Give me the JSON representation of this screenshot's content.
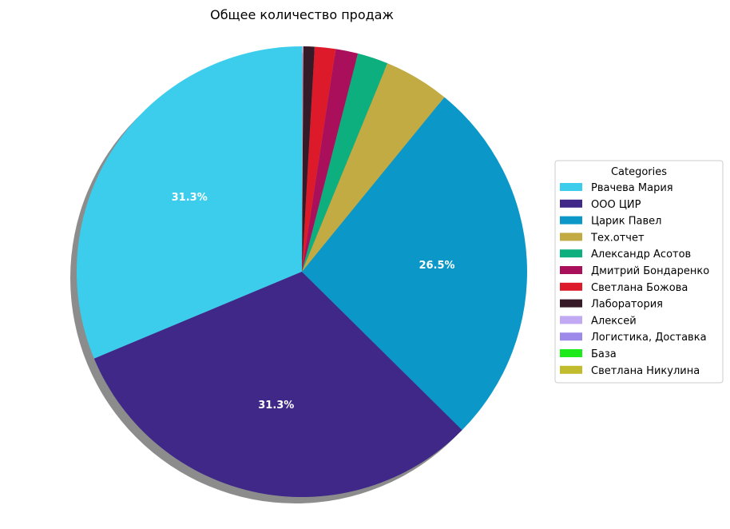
{
  "chart_data": {
    "type": "pie",
    "title": "Общее количество продаж",
    "legend_title": "Categories",
    "legend_position": "right",
    "shadow": true,
    "start_angle_deg": 90,
    "direction": "counterclockwise",
    "label_min_percent": 10,
    "slices": [
      {
        "label": "Рвачева Мария",
        "value": 31.3,
        "color": "#3dcdec"
      },
      {
        "label": "ООО ЦИР",
        "value": 31.3,
        "color": "#3f2888"
      },
      {
        "label": "Царик Павел",
        "value": 26.5,
        "color": "#0b98c8"
      },
      {
        "label": "Тех.отчет",
        "value": 4.7,
        "color": "#c3ab44"
      },
      {
        "label": "Александр Асотов",
        "value": 2.2,
        "color": "#0daf7e"
      },
      {
        "label": "Дмитрий Бондаренко",
        "value": 1.6,
        "color": "#a90f5b"
      },
      {
        "label": "Светлана Божова",
        "value": 1.5,
        "color": "#dd1a2a"
      },
      {
        "label": "Лаборатория",
        "value": 0.8,
        "color": "#361a28"
      },
      {
        "label": "Алексей",
        "value": 0.05,
        "color": "#c2a9f4"
      },
      {
        "label": "Логистика,  Доставка",
        "value": 0.03,
        "color": "#9d89ea"
      },
      {
        "label": "База",
        "value": 0.01,
        "color": "#1ee91a"
      },
      {
        "label": "Светлана Никулина",
        "value": 0.01,
        "color": "#c1bb2e"
      }
    ]
  }
}
